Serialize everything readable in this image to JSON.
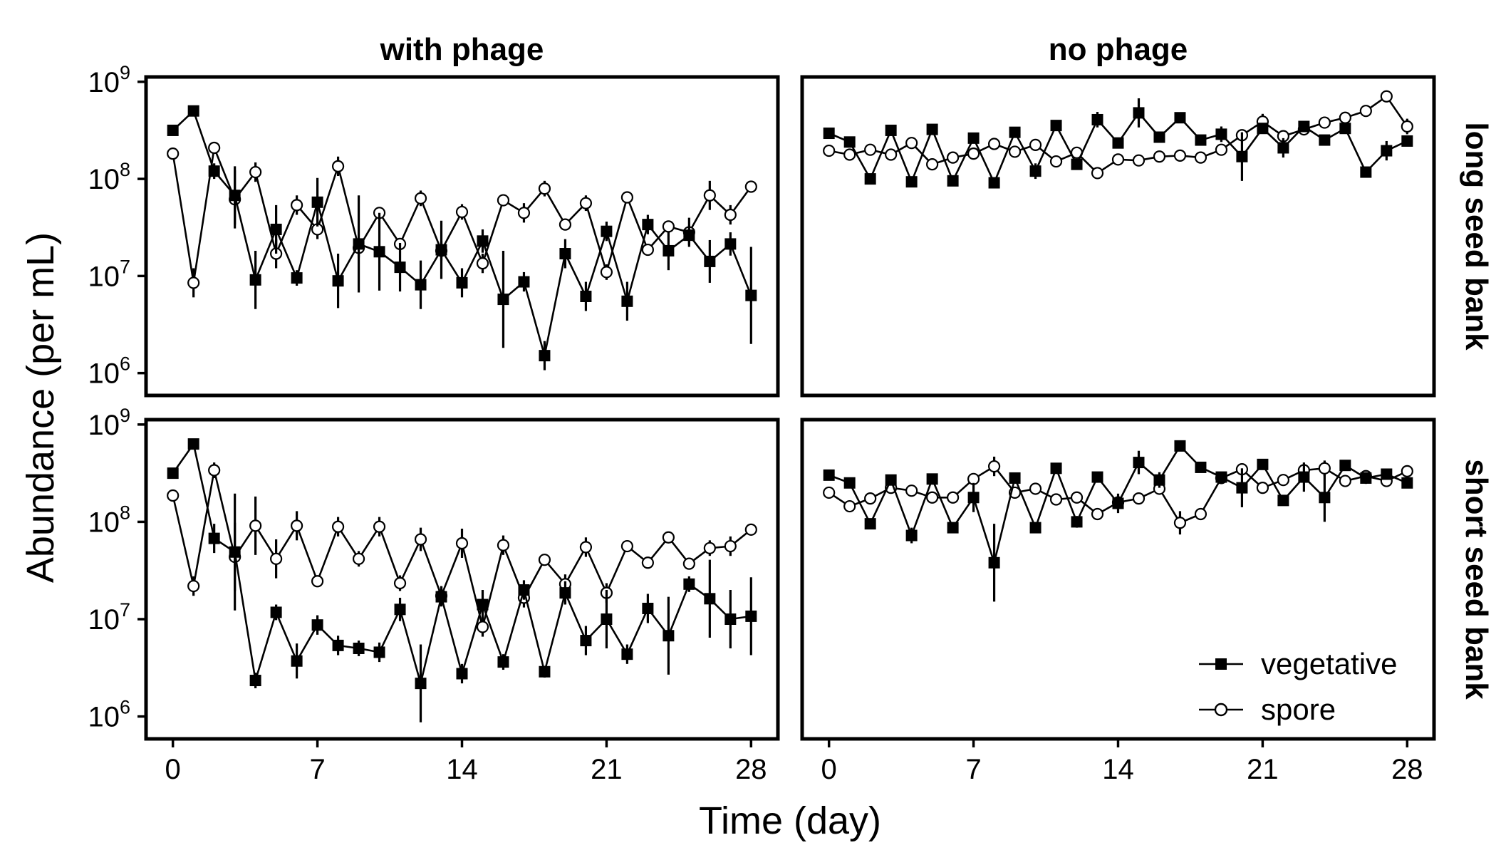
{
  "chart_data": {
    "type": "line",
    "xlabel": "Time (day)",
    "ylabel": "Abundance (per mL)",
    "x_ticks": [
      0,
      7,
      14,
      21,
      28
    ],
    "y_scale": "log10",
    "y_ticks": [
      {
        "base": "10",
        "exp": "6",
        "value": 1000000
      },
      {
        "base": "10",
        "exp": "7",
        "value": 10000000
      },
      {
        "base": "10",
        "exp": "8",
        "value": 100000000
      },
      {
        "base": "10",
        "exp": "9",
        "value": 1000000000
      }
    ],
    "ylim_log10": [
      5.77,
      9.05
    ],
    "xlim": [
      -1.3,
      29.3
    ],
    "columns": [
      "with phage",
      "no phage"
    ],
    "rows": [
      "long seed bank",
      "short seed bank"
    ],
    "legend": {
      "position": "bottom-right",
      "items": [
        "vegetative",
        "spore"
      ]
    },
    "days": [
      0,
      1,
      2,
      3,
      4,
      5,
      6,
      7,
      8,
      9,
      10,
      11,
      12,
      13,
      14,
      15,
      16,
      17,
      18,
      19,
      20,
      21,
      22,
      23,
      24,
      25,
      26,
      27,
      28
    ],
    "panels": [
      {
        "row": "long seed bank",
        "column": "with phage",
        "series": [
          {
            "name": "vegetative",
            "log10": [
              8.5,
              8.7,
              8.08,
              7.83,
              6.96,
              7.48,
              6.98,
              7.76,
              6.95,
              7.33,
              7.25,
              7.09,
              6.91,
              7.27,
              6.93,
              7.36,
              6.76,
              6.94,
              6.18,
              7.23,
              6.79,
              7.46,
              6.74,
              7.53,
              7.26,
              7.42,
              7.15,
              7.33,
              6.8
            ],
            "err": [
              0.05,
              0.05,
              0.08,
              0.3,
              0.3,
              0.25,
              0.08,
              0.25,
              0.28,
              0.5,
              0.4,
              0.25,
              0.25,
              0.3,
              0.15,
              0.12,
              0.5,
              0.1,
              0.15,
              0.15,
              0.15,
              0.1,
              0.2,
              0.1,
              0.2,
              0.1,
              0.22,
              0.12,
              0.5
            ]
          },
          {
            "name": "spore",
            "log10": [
              8.26,
              6.93,
              8.32,
              7.79,
              8.07,
              7.23,
              7.73,
              7.48,
              8.13,
              7.29,
              7.65,
              7.33,
              7.8,
              7.26,
              7.66,
              7.13,
              7.78,
              7.65,
              7.9,
              7.53,
              7.75,
              7.04,
              7.81,
              7.27,
              7.51,
              7.45,
              7.83,
              7.63,
              7.92
            ],
            "err": [
              0.03,
              0.15,
              0.05,
              0.3,
              0.1,
              0.15,
              0.1,
              0.1,
              0.1,
              0.1,
              0.05,
              0.05,
              0.08,
              0.1,
              0.08,
              0.1,
              0.05,
              0.1,
              0.08,
              0.05,
              0.08,
              0.08,
              0.05,
              0.05,
              0.05,
              0.15,
              0.15,
              0.1,
              0.05
            ]
          }
        ]
      },
      {
        "row": "long seed bank",
        "column": "no phage",
        "series": [
          {
            "name": "vegetative",
            "log10": [
              8.47,
              8.38,
              8.0,
              8.5,
              7.97,
              8.51,
              7.98,
              8.42,
              7.96,
              8.48,
              8.08,
              8.55,
              8.15,
              8.61,
              8.37,
              8.68,
              8.43,
              8.63,
              8.4,
              8.46,
              8.23,
              8.52,
              8.32,
              8.54,
              8.4,
              8.52,
              8.07,
              8.29,
              8.39
            ],
            "err": [
              0.04,
              0.04,
              0.05,
              0.04,
              0.04,
              0.04,
              0.04,
              0.04,
              0.04,
              0.05,
              0.08,
              0.05,
              0.05,
              0.08,
              0.05,
              0.15,
              0.05,
              0.05,
              0.05,
              0.08,
              0.25,
              0.05,
              0.1,
              0.05,
              0.05,
              0.05,
              0.05,
              0.1,
              0.04
            ]
          },
          {
            "name": "spore",
            "log10": [
              8.29,
              8.25,
              8.3,
              8.25,
              8.37,
              8.15,
              8.22,
              8.26,
              8.36,
              8.28,
              8.35,
              8.18,
              8.27,
              8.06,
              8.2,
              8.19,
              8.23,
              8.24,
              8.22,
              8.3,
              8.45,
              8.59,
              8.44,
              8.51,
              8.58,
              8.63,
              8.7,
              8.85,
              8.54
            ],
            "err": [
              0.03,
              0.03,
              0.03,
              0.03,
              0.04,
              0.03,
              0.03,
              0.03,
              0.03,
              0.03,
              0.03,
              0.03,
              0.03,
              0.03,
              0.03,
              0.03,
              0.03,
              0.03,
              0.03,
              0.04,
              0.05,
              0.08,
              0.05,
              0.04,
              0.04,
              0.04,
              0.04,
              0.04,
              0.08
            ]
          }
        ]
      },
      {
        "row": "short seed bank",
        "column": "with phage",
        "series": [
          {
            "name": "vegetative",
            "log10": [
              8.5,
              8.8,
              7.83,
              7.69,
              6.37,
              7.07,
              6.57,
              6.94,
              6.73,
              6.7,
              6.66,
              7.1,
              6.34,
              7.23,
              6.44,
              7.15,
              6.56,
              7.3,
              6.46,
              7.27,
              6.78,
              7.0,
              6.64,
              7.11,
              6.83,
              7.36,
              7.21,
              7.0,
              7.03
            ],
            "err": [
              0.04,
              0.04,
              0.15,
              0.6,
              0.08,
              0.08,
              0.18,
              0.1,
              0.1,
              0.08,
              0.1,
              0.12,
              0.4,
              0.1,
              0.1,
              0.15,
              0.08,
              0.1,
              0.06,
              0.12,
              0.15,
              0.3,
              0.1,
              0.15,
              0.4,
              0.08,
              0.4,
              0.3,
              0.4
            ]
          },
          {
            "name": "spore",
            "log10": [
              8.27,
              7.34,
              8.53,
              7.64,
              7.96,
              7.62,
              7.96,
              7.39,
              7.95,
              7.62,
              7.95,
              7.37,
              7.82,
              7.24,
              7.78,
              6.92,
              7.76,
              7.22,
              7.61,
              7.36,
              7.74,
              7.27,
              7.75,
              7.58,
              7.84,
              7.57,
              7.73,
              7.75,
              7.92
            ],
            "err": [
              0.03,
              0.1,
              0.08,
              0.35,
              0.3,
              0.2,
              0.15,
              0.06,
              0.1,
              0.08,
              0.1,
              0.08,
              0.12,
              0.1,
              0.15,
              0.1,
              0.1,
              0.1,
              0.05,
              0.1,
              0.1,
              0.1,
              0.05,
              0.06,
              0.06,
              0.06,
              0.08,
              0.1,
              0.05
            ]
          }
        ]
      },
      {
        "row": "short seed bank",
        "column": "no phage",
        "series": [
          {
            "name": "vegetative",
            "log10": [
              8.48,
              8.4,
              7.98,
              8.43,
              7.86,
              8.44,
              7.94,
              8.25,
              7.58,
              8.45,
              7.94,
              8.55,
              8.0,
              8.46,
              8.19,
              8.61,
              8.43,
              8.78,
              8.56,
              8.46,
              8.35,
              8.59,
              8.22,
              8.46,
              8.25,
              8.58,
              8.45,
              8.49,
              8.4
            ],
            "err": [
              0.04,
              0.04,
              0.04,
              0.04,
              0.08,
              0.04,
              0.04,
              0.15,
              0.4,
              0.04,
              0.04,
              0.04,
              0.06,
              0.05,
              0.1,
              0.12,
              0.08,
              0.05,
              0.05,
              0.04,
              0.2,
              0.05,
              0.04,
              0.15,
              0.25,
              0.05,
              0.06,
              0.04,
              0.05
            ]
          },
          {
            "name": "spore",
            "log10": [
              8.3,
              8.16,
              8.24,
              8.35,
              8.32,
              8.25,
              8.25,
              8.44,
              8.57,
              8.3,
              8.34,
              8.23,
              8.25,
              8.08,
              8.2,
              8.24,
              8.34,
              7.99,
              8.08,
              8.45,
              8.54,
              8.35,
              8.43,
              8.53,
              8.55,
              8.42,
              8.47,
              8.42,
              8.52
            ],
            "err": [
              0.03,
              0.03,
              0.03,
              0.03,
              0.06,
              0.03,
              0.03,
              0.03,
              0.1,
              0.03,
              0.03,
              0.03,
              0.03,
              0.06,
              0.03,
              0.03,
              0.03,
              0.12,
              0.06,
              0.03,
              0.05,
              0.03,
              0.05,
              0.05,
              0.08,
              0.03,
              0.03,
              0.03,
              0.03
            ]
          }
        ]
      }
    ]
  }
}
